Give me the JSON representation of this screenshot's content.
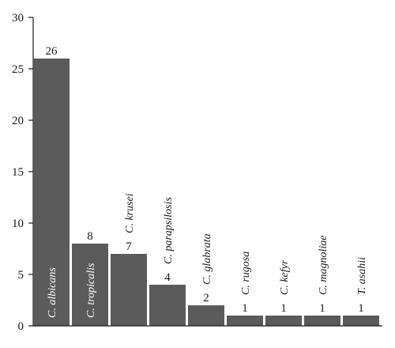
{
  "chart_data": {
    "type": "bar",
    "categories": [
      "C. albicans",
      "C. tropicalis",
      "C. krusei",
      "C. parapsilosis",
      "C. glabrata",
      "C. rugosa",
      "C. kefyr",
      "C. magnoliae",
      "T. asahii"
    ],
    "values": [
      26,
      8,
      7,
      4,
      2,
      1,
      1,
      1,
      1
    ],
    "ylim": [
      0,
      30
    ],
    "yticks": [
      0,
      5,
      10,
      15,
      20,
      25,
      30
    ],
    "ytick_labels": [
      "0",
      "5",
      "10",
      "15",
      "20",
      "25",
      "30"
    ],
    "value_labels": [
      "26",
      "8",
      "7",
      "4",
      "2",
      "1",
      "1",
      "1",
      "1"
    ],
    "title": "",
    "xlabel": "",
    "ylabel": "",
    "grid": false,
    "legend": "none",
    "colors": {
      "bar": "#5b5b5b",
      "axis": "#1a1a1a",
      "label_inside": "#ffffff",
      "label_outside": "#1a1a1a"
    }
  }
}
